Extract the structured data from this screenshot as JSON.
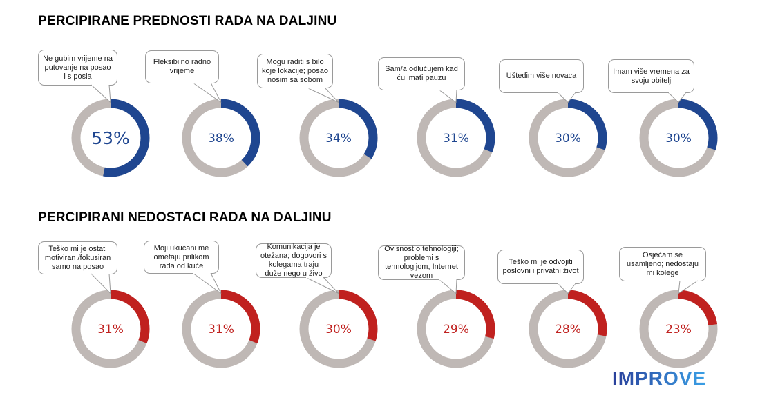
{
  "chart_data": [
    {
      "type": "pie",
      "variant": "donut",
      "title": "PERCIPIRANE PREDNOSTI RADA NA DALJINU",
      "color": "#1f4690",
      "rest_color": "#bfb8b5",
      "categories": [
        "Ne gubim vrijeme na putovanje na posao i s posla",
        "Fleksibilno radno vrijeme",
        "Mogu raditi s bilo koje lokacije; posao nosim sa sobom",
        "Sam/a odlučujem kad ću imati pauzu",
        "Uštedim više novaca",
        "Imam više vremena za svoju obitelj"
      ],
      "values": [
        53,
        38,
        34,
        31,
        30,
        30
      ],
      "labels": [
        "53%",
        "38%",
        "34%",
        "31%",
        "30%",
        "30%"
      ]
    },
    {
      "type": "pie",
      "variant": "donut",
      "title": "PERCIPIRANI NEDOSTACI RADA NA DALJINU",
      "color": "#c0211f",
      "rest_color": "#bfb8b5",
      "categories": [
        "Teško mi je ostati motiviran /fokusiran samo na posao",
        "Moji ukućani me ometaju prilikom rada od kuće",
        "Komunikacija je otežana; dogovori s kolegama traju duže nego u živo",
        "Ovisnost  o tehnologiji; problemi s tehnologijom, Internet vezom",
        "Teško mi je odvojiti poslovni i privatni život",
        "Osjećam se usamljeno; nedostaju mi kolege"
      ],
      "values": [
        31,
        31,
        30,
        29,
        28,
        23
      ],
      "labels": [
        "31%",
        "31%",
        "30%",
        "29%",
        "28%",
        "23%"
      ]
    }
  ],
  "logo": "IMPROVE"
}
